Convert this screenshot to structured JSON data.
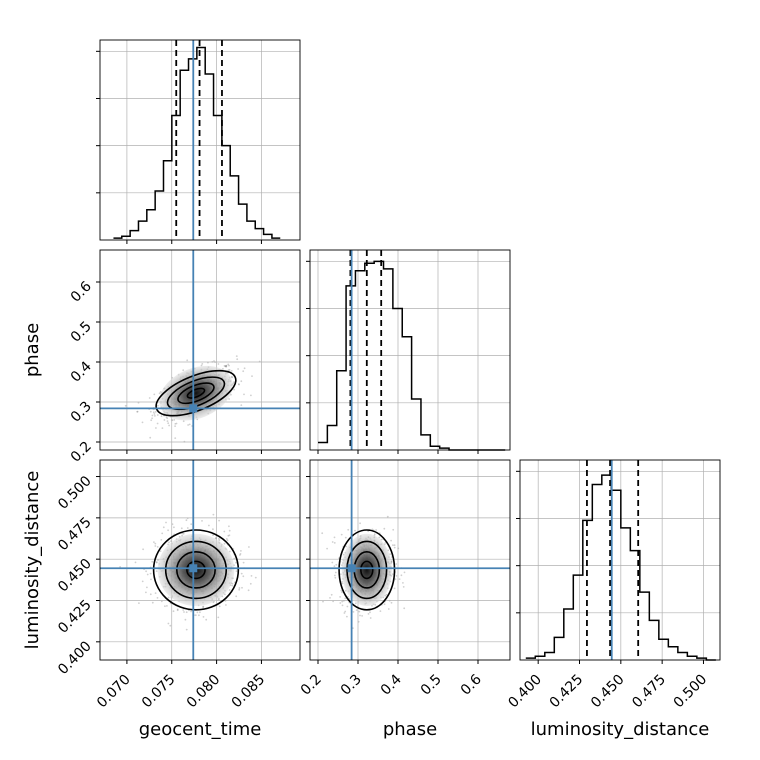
{
  "chart_data": {
    "type": "corner",
    "parameters": [
      {
        "key": "geocent_time",
        "label": "geocent_time",
        "range": [
          0.067,
          0.0893
        ],
        "ticks": [
          0.07,
          0.075,
          0.08,
          0.085
        ],
        "tick_labels": [
          "0.070",
          "0.075",
          "0.080",
          "0.085"
        ]
      },
      {
        "key": "phase",
        "label": "phase",
        "range": [
          0.18,
          0.68
        ],
        "ticks": [
          0.2,
          0.3,
          0.4,
          0.5,
          0.6
        ],
        "tick_labels": [
          "0.2",
          "0.3",
          "0.4",
          "0.5",
          "0.6"
        ]
      },
      {
        "key": "luminosity_distance",
        "label": "luminosity_distance",
        "range": [
          0.389,
          0.51
        ],
        "ticks": [
          0.4,
          0.425,
          0.45,
          0.475,
          0.5
        ],
        "tick_labels": [
          "0.400",
          "0.425",
          "0.450",
          "0.475",
          "0.500"
        ]
      }
    ],
    "truths": {
      "geocent_time": 0.0774,
      "phase": 0.284,
      "luminosity_distance": 0.4445
    },
    "quantiles": {
      "geocent_time": [
        0.0755,
        0.0781,
        0.0806
      ],
      "phase": [
        0.281,
        0.322,
        0.358
      ],
      "luminosity_distance": [
        0.4295,
        0.4435,
        0.4605
      ]
    },
    "histograms": {
      "geocent_time": {
        "edges_start": 0.0685,
        "bin_width": 0.00093,
        "counts": [
          1,
          2,
          5,
          10,
          16,
          26,
          42,
          66,
          90,
          96,
          102,
          88,
          66,
          50,
          34,
          19,
          10,
          6,
          3,
          1
        ]
      },
      "phase": {
        "edges_start": 0.2,
        "bin_width": 0.0234,
        "counts": [
          4,
          13,
          42,
          87,
          95,
          99,
          100,
          96,
          75,
          60,
          27,
          8,
          2,
          1,
          0,
          0,
          0,
          0,
          0,
          0
        ]
      },
      "luminosity_distance": {
        "edges_start": 0.3925,
        "bin_width": 0.00575,
        "counts": [
          1,
          2,
          4,
          12,
          27,
          45,
          74,
          93,
          98,
          90,
          70,
          58,
          36,
          21,
          11,
          7,
          4,
          2,
          1,
          0
        ]
      }
    },
    "ylim_hist": [
      0,
      106
    ],
    "colors": {
      "truth": "#4682b4",
      "hist": "#000000",
      "points": "#777777",
      "grid": "#b0b0b0"
    },
    "grid": true
  }
}
